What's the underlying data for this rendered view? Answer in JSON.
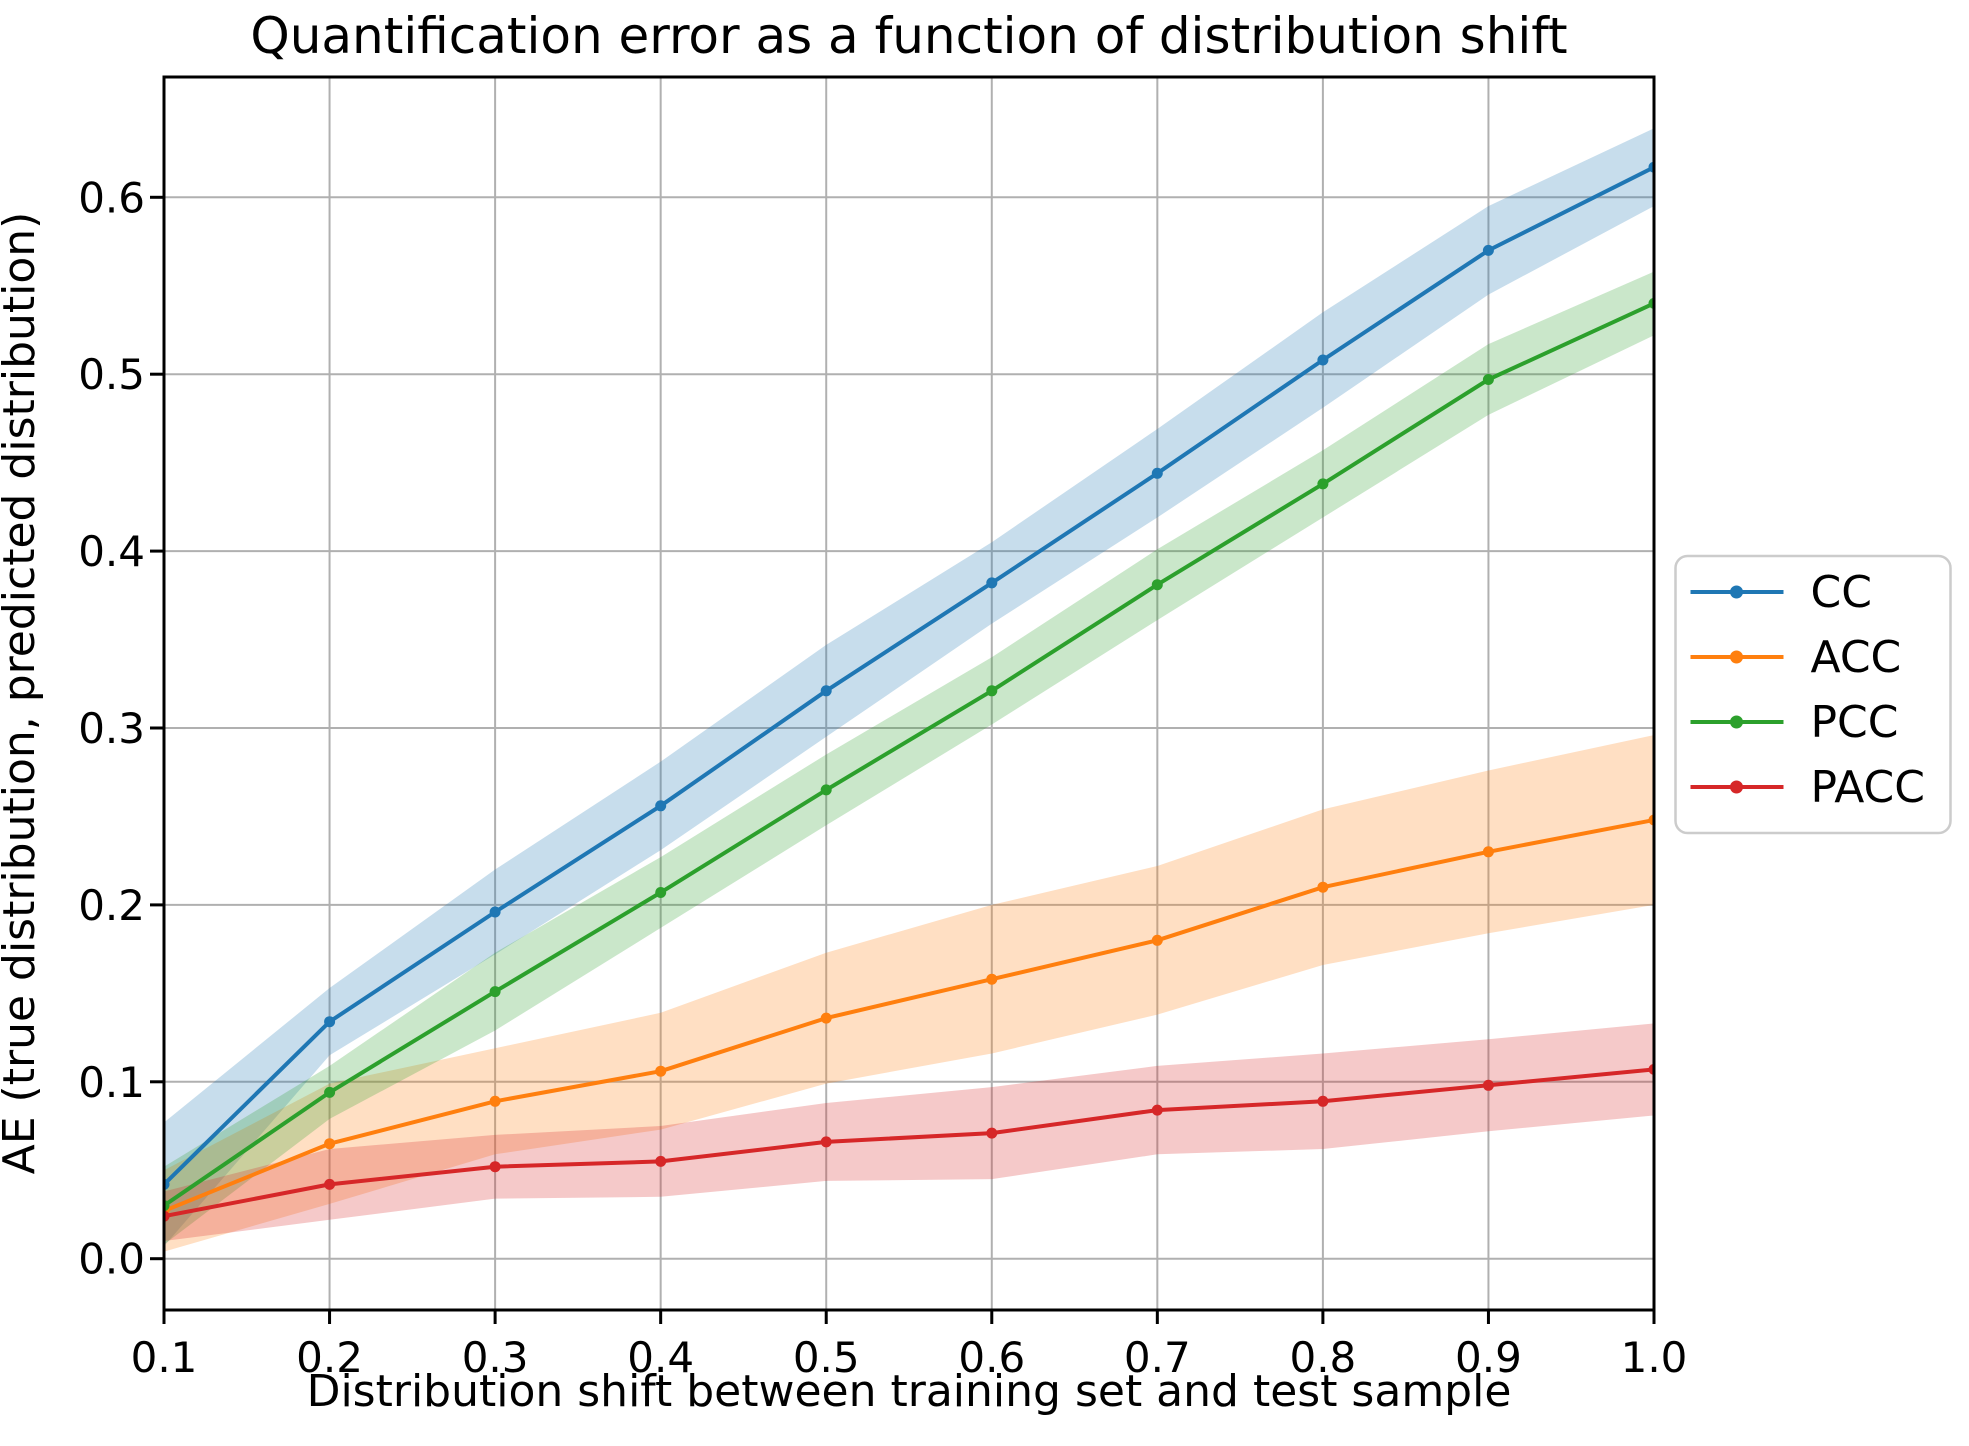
{
  "chart_data": {
    "type": "line",
    "title": "Quantification error as a function of distribution shift",
    "xlabel": "Distribution shift between training set and test sample",
    "ylabel": "AE (true distribution, predicted distribution)",
    "grid": true,
    "legend_position": "outside-center-right",
    "x": [
      0.1,
      0.2,
      0.3,
      0.4,
      0.5,
      0.6,
      0.7,
      0.8,
      0.9,
      1.0
    ],
    "x_tick_labels": [
      "0.1",
      "0.2",
      "0.3",
      "0.4",
      "0.5",
      "0.6",
      "0.7",
      "0.8",
      "0.9",
      "1.0"
    ],
    "y_ticks": [
      0.0,
      0.1,
      0.2,
      0.3,
      0.4,
      0.5,
      0.6
    ],
    "y_tick_labels": [
      "0.0",
      "0.1",
      "0.2",
      "0.3",
      "0.4",
      "0.5",
      "0.6"
    ],
    "xlim": [
      0.1,
      1.0
    ],
    "ylim": [
      -0.029,
      0.668
    ],
    "grid_color": "#b0b0b0",
    "spine_color": "#000000",
    "band_opacity": 0.25,
    "series": [
      {
        "name": "CC",
        "color": "#1f77b4",
        "values": [
          0.042,
          0.134,
          0.196,
          0.256,
          0.321,
          0.382,
          0.444,
          0.508,
          0.57,
          0.617
        ],
        "band_half_width": [
          0.035,
          0.019,
          0.024,
          0.025,
          0.026,
          0.023,
          0.025,
          0.027,
          0.025,
          0.022
        ]
      },
      {
        "name": "ACC",
        "color": "#ff7f0e",
        "values": [
          0.027,
          0.065,
          0.089,
          0.106,
          0.136,
          0.158,
          0.18,
          0.21,
          0.23,
          0.248
        ],
        "band_half_width": [
          0.023,
          0.034,
          0.03,
          0.033,
          0.037,
          0.042,
          0.042,
          0.044,
          0.046,
          0.048
        ]
      },
      {
        "name": "PCC",
        "color": "#2ca02c",
        "values": [
          0.03,
          0.094,
          0.151,
          0.207,
          0.265,
          0.321,
          0.381,
          0.438,
          0.497,
          0.54
        ],
        "band_half_width": [
          0.022,
          0.015,
          0.022,
          0.02,
          0.02,
          0.019,
          0.02,
          0.019,
          0.02,
          0.018
        ]
      },
      {
        "name": "PACC",
        "color": "#d62728",
        "values": [
          0.024,
          0.042,
          0.052,
          0.055,
          0.066,
          0.071,
          0.084,
          0.089,
          0.098,
          0.107
        ],
        "band_half_width": [
          0.014,
          0.02,
          0.018,
          0.02,
          0.022,
          0.026,
          0.025,
          0.027,
          0.026,
          0.026
        ]
      }
    ]
  }
}
